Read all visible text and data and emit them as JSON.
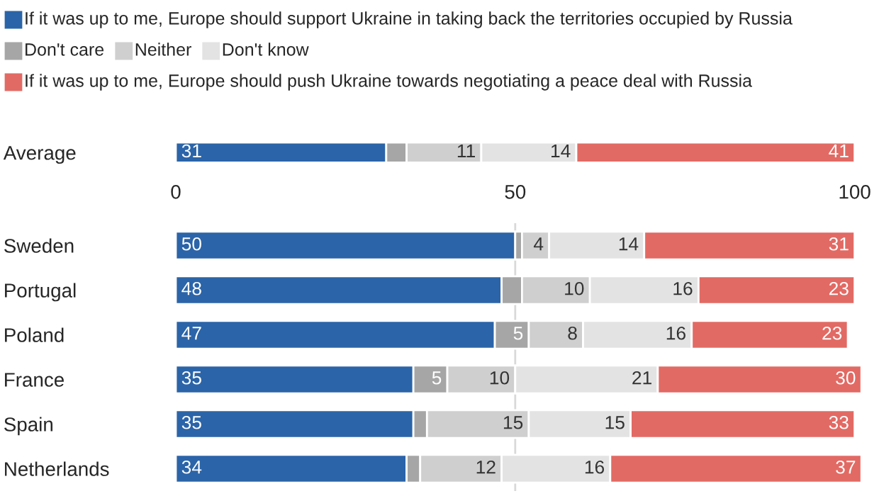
{
  "chart_data": [
    {
      "type": "bar",
      "orientation": "horizontal",
      "stacked": true,
      "legend": "top",
      "categories": [
        "Average"
      ],
      "xlim": [
        0,
        101
      ],
      "xticks": [
        0,
        50,
        100
      ],
      "series": [
        {
          "name": "If it was up to me, Europe should support Ukraine in taking back the territories occupied by Russia",
          "color": "#2b64a8",
          "values": [
            31
          ],
          "value_labels": [
            "31"
          ]
        },
        {
          "name": "Don't care",
          "color": "#a6a6a6",
          "values": [
            3
          ],
          "value_labels": [
            null
          ]
        },
        {
          "name": "Neither",
          "color": "#cfcfcf",
          "values": [
            11
          ],
          "value_labels": [
            "11"
          ]
        },
        {
          "name": "Don't know",
          "color": "#e3e3e3",
          "values": [
            14
          ],
          "value_labels": [
            "14"
          ]
        },
        {
          "name": "If it was up to me, Europe should push Ukraine towards negotiating a peace deal with Russia",
          "color": "#e26a64",
          "values": [
            41
          ],
          "value_labels": [
            "41"
          ]
        }
      ]
    },
    {
      "type": "bar",
      "orientation": "horizontal",
      "stacked": true,
      "tick_labels": "y",
      "categories": [
        "Sweden",
        "Portugal",
        "Poland",
        "France",
        "Spain",
        "Netherlands"
      ],
      "xlim": [
        0,
        101
      ],
      "ref_lines": [
        {
          "axis": "x",
          "value": 50,
          "color": "#d9d9d9"
        }
      ],
      "series": [
        {
          "color": "#2b64a8",
          "values": [
            50,
            48,
            47,
            35,
            35,
            34
          ],
          "value_labels": [
            "50",
            "48",
            "47",
            "35",
            "35",
            "34"
          ]
        },
        {
          "color": "#a6a6a6",
          "values": [
            1,
            3,
            5,
            5,
            2,
            2
          ],
          "value_labels": [
            null,
            null,
            "5",
            "5",
            null,
            null
          ]
        },
        {
          "color": "#cfcfcf",
          "values": [
            4,
            10,
            8,
            10,
            15,
            12
          ],
          "value_labels": [
            "4",
            "10",
            "8",
            "10",
            "15",
            "12"
          ]
        },
        {
          "color": "#e3e3e3",
          "values": [
            14,
            16,
            16,
            21,
            15,
            16
          ],
          "value_labels": [
            "14",
            "16",
            "16",
            "21",
            "15",
            "16"
          ]
        },
        {
          "color": "#e26a64",
          "values": [
            31,
            23,
            23,
            30,
            33,
            37
          ],
          "value_labels": [
            "31",
            "23",
            "23",
            "30",
            "33",
            "37"
          ]
        }
      ]
    }
  ]
}
